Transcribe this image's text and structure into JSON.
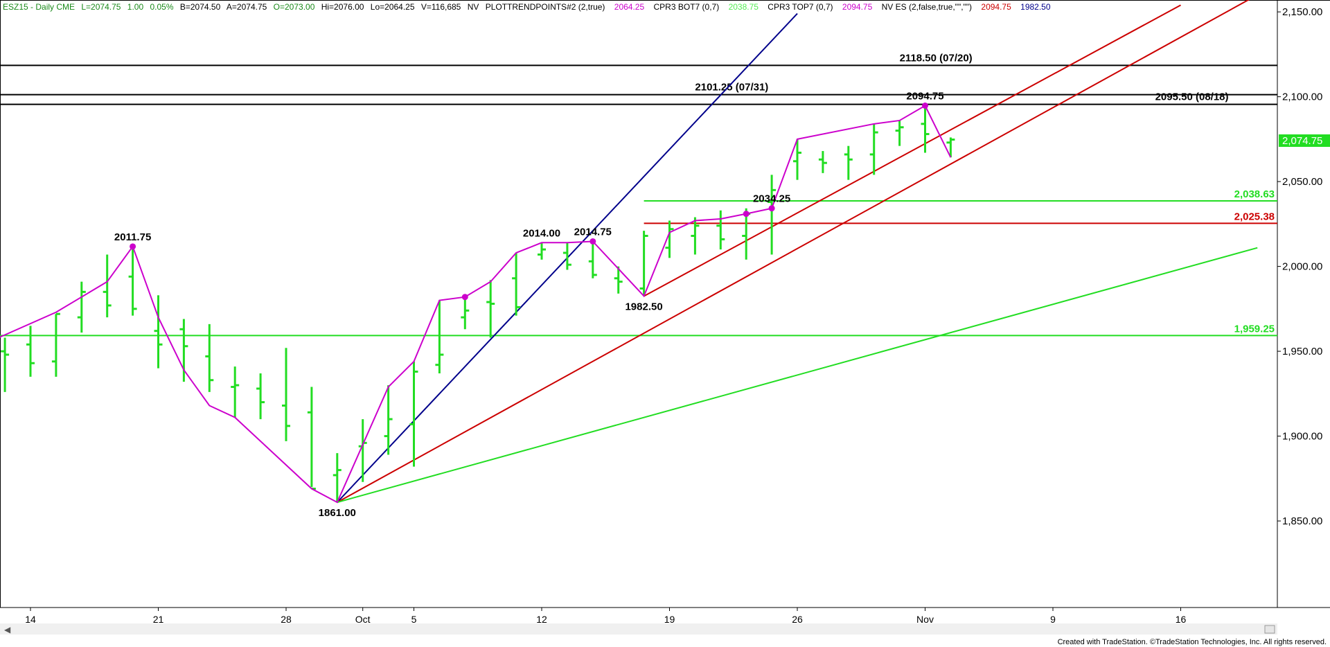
{
  "header": {
    "symbol": "ESZ15 - Daily  CME",
    "last": "L=2074.75",
    "change": "1.00",
    "pct": "0.05%",
    "bid": "B=2074.50",
    "ask": "A=2074.75",
    "open": "O=2073.00",
    "high": "Hi=2076.00",
    "low": "Lo=2064.25",
    "volume": "V=116,685",
    "nv1": "NV",
    "study1": "PLOTTRENDPOINTS#2 (2,true)",
    "study1_val": "2064.25",
    "study2": "CPR3 BOT7 (0,7)",
    "study2_val": "2038.75",
    "study3": "CPR3 TOP7 (0,7)",
    "study3_val": "2094.75",
    "study4": "NV ES (2,false,true,\"\",\"\")",
    "study4_val1": "2094.75",
    "study4_val2": "1982.50"
  },
  "footer": {
    "credit": "Created with TradeStation. ©TradeStation Technologies, Inc. All rights reserved."
  },
  "chart_data": {
    "type": "bar",
    "ohlc_bars": [
      {
        "date": "2015-09-11",
        "high": 1958,
        "low": 1926,
        "open": 1950,
        "close": 1948
      },
      {
        "date": "2015-09-14",
        "high": 1965,
        "low": 1935,
        "open": 1954,
        "close": 1943
      },
      {
        "date": "2015-09-15",
        "high": 1972,
        "low": 1935,
        "open": 1944,
        "close": 1972
      },
      {
        "date": "2015-09-16",
        "high": 1991,
        "low": 1961,
        "open": 1970,
        "close": 1985
      },
      {
        "date": "2015-09-17",
        "high": 2007,
        "low": 1970,
        "open": 1985,
        "close": 1977
      },
      {
        "date": "2015-09-18",
        "high": 2011.75,
        "low": 1971,
        "open": 1994,
        "close": 1975
      },
      {
        "date": "2015-09-21",
        "high": 1983,
        "low": 1940,
        "open": 1962,
        "close": 1954
      },
      {
        "date": "2015-09-22",
        "high": 1969,
        "low": 1932,
        "open": 1963,
        "close": 1953
      },
      {
        "date": "2015-09-23",
        "high": 1966,
        "low": 1926,
        "open": 1947,
        "close": 1933
      },
      {
        "date": "2015-09-24",
        "high": 1941,
        "low": 1911,
        "open": 1929,
        "close": 1930
      },
      {
        "date": "2015-09-25",
        "high": 1937,
        "low": 1910,
        "open": 1928,
        "close": 1920
      },
      {
        "date": "2015-09-28",
        "high": 1952,
        "low": 1897,
        "open": 1918,
        "close": 1906
      },
      {
        "date": "2015-09-29",
        "high": 1929,
        "low": 1870,
        "open": 1914,
        "close": 1869
      },
      {
        "date": "2015-09-30",
        "high": 1890,
        "low": 1861,
        "open": 1877,
        "close": 1880
      },
      {
        "date": "2015-10-01",
        "high": 1910,
        "low": 1873,
        "open": 1894,
        "close": 1896
      },
      {
        "date": "2015-10-02",
        "high": 1930,
        "low": 1889,
        "open": 1900,
        "close": 1910
      },
      {
        "date": "2015-10-05",
        "high": 1944,
        "low": 1882,
        "open": 1907,
        "close": 1938
      },
      {
        "date": "2015-10-06",
        "high": 1980,
        "low": 1937,
        "open": 1942,
        "close": 1948
      },
      {
        "date": "2015-10-07",
        "high": 1983,
        "low": 1963,
        "open": 1970,
        "close": 1974
      },
      {
        "date": "2015-10-08",
        "high": 1992,
        "low": 1958,
        "open": 1979,
        "close": 1978
      },
      {
        "date": "2015-10-09",
        "high": 2008,
        "low": 1971,
        "open": 1993,
        "close": 1976
      },
      {
        "date": "2015-10-12",
        "high": 2014,
        "low": 2004,
        "open": 2007,
        "close": 2010
      },
      {
        "date": "2015-10-13",
        "high": 2014,
        "low": 1998,
        "open": 2008,
        "close": 2001
      },
      {
        "date": "2015-10-14",
        "high": 2014.75,
        "low": 1993,
        "open": 2003,
        "close": 1995
      },
      {
        "date": "2015-10-15",
        "high": 2000,
        "low": 1984,
        "open": 1993,
        "close": 1991
      },
      {
        "date": "2015-10-16",
        "high": 2021,
        "low": 1982.5,
        "open": 1987,
        "close": 2018
      },
      {
        "date": "2015-10-19",
        "high": 2027,
        "low": 2005,
        "open": 2011,
        "close": 2022
      },
      {
        "date": "2015-10-20",
        "high": 2029,
        "low": 2007,
        "open": 2018,
        "close": 2024
      },
      {
        "date": "2015-10-21",
        "high": 2033,
        "low": 2010,
        "open": 2024,
        "close": 2016
      },
      {
        "date": "2015-10-22",
        "high": 2034.25,
        "low": 2004,
        "open": 2018,
        "close": 2031
      },
      {
        "date": "2015-10-23",
        "high": 2054,
        "low": 2007,
        "open": 2038,
        "close": 2045
      },
      {
        "date": "2015-10-26",
        "high": 2075,
        "low": 2051,
        "open": 2062,
        "close": 2067
      },
      {
        "date": "2015-10-27",
        "high": 2068,
        "low": 2055,
        "open": 2063,
        "close": 2061
      },
      {
        "date": "2015-10-28",
        "high": 2071,
        "low": 2051,
        "open": 2066,
        "close": 2063
      },
      {
        "date": "2015-10-29",
        "high": 2084,
        "low": 2054,
        "open": 2066,
        "close": 2079
      },
      {
        "date": "2015-10-30",
        "high": 2086,
        "low": 2071,
        "open": 2080,
        "close": 2082
      },
      {
        "date": "2015-11-02",
        "high": 2094.75,
        "low": 2067,
        "open": 2084,
        "close": 2078
      },
      {
        "date": "2015-11-03",
        "high": 2076,
        "low": 2064.25,
        "open": 2073,
        "close": 2074.75
      }
    ],
    "y_tick_labels": [
      "2,150.00",
      "2,100.00",
      "2,050.00",
      "2,000.00",
      "1,950.00",
      "1,900.00",
      "1,850.00"
    ],
    "y_ticks": [
      2150,
      2100,
      2050,
      2000,
      1950,
      1900,
      1850
    ],
    "ylim": [
      1799,
      2157
    ],
    "x_tick_labels": [
      {
        "label": "14",
        "date": "2015-09-14"
      },
      {
        "label": "21",
        "date": "2015-09-21"
      },
      {
        "label": "28",
        "date": "2015-09-28"
      },
      {
        "label": "Oct",
        "date": "2015-10-01"
      },
      {
        "label": "5",
        "date": "2015-10-05"
      },
      {
        "label": "12",
        "date": "2015-10-12"
      },
      {
        "label": "19",
        "date": "2015-10-19"
      },
      {
        "label": "26",
        "date": "2015-10-26"
      },
      {
        "label": "Nov",
        "date": "2015-11-02"
      },
      {
        "label": "9",
        "date": "2015-11-09"
      },
      {
        "label": "16",
        "date": "2015-11-16"
      }
    ],
    "last_price_label": "2,074.75",
    "horizontal_levels": [
      {
        "value": 2118.5,
        "color": "#000000",
        "label": "2118.50 (07/20)",
        "label_date": "2015-10-30"
      },
      {
        "value": 2101.25,
        "color": "#000000",
        "label": "2101.25 (07/31)",
        "label_date": "2015-10-20"
      },
      {
        "value": 2095.5,
        "color": "#000000",
        "label": "2095.50 (08/18)",
        "label_date": "2015-11-13"
      }
    ],
    "level_lines": [
      {
        "value": 2038.63,
        "color": "#22dd22",
        "start_date": "2015-10-16",
        "label": "2,038.63"
      },
      {
        "value": 2025.38,
        "color": "#cc0000",
        "start_date": "2015-10-16",
        "label": "2,025.38"
      },
      {
        "value": 1959.25,
        "color": "#22dd22",
        "start_date": "2015-09-10",
        "label": "1,959.25"
      }
    ],
    "trend_lines": [
      {
        "color": "#00008b",
        "from": {
          "date": "2015-09-30",
          "value": 1861
        },
        "to": {
          "date": "2015-10-26",
          "value": 2149
        }
      },
      {
        "color": "#cc0000",
        "from": {
          "date": "2015-09-30",
          "value": 1861
        },
        "to": {
          "date": "2015-11-19",
          "value": 2160
        }
      },
      {
        "color": "#cc0000",
        "from": {
          "date": "2015-10-16",
          "value": 1982.5
        },
        "to": {
          "date": "2015-11-16",
          "value": 2154
        }
      },
      {
        "color": "#22dd22",
        "from": {
          "date": "2015-09-30",
          "value": 1861
        },
        "to": {
          "date": "2015-11-19",
          "value": 2011
        }
      }
    ],
    "swing_line": [
      {
        "date": "2015-09-10",
        "value": 1953
      },
      {
        "date": "2015-09-15",
        "value": 1973
      },
      {
        "date": "2015-09-17",
        "value": 1991
      },
      {
        "date": "2015-09-18",
        "value": 2011.75
      },
      {
        "date": "2015-09-21",
        "value": 1970
      },
      {
        "date": "2015-09-22",
        "value": 1939
      },
      {
        "date": "2015-09-23",
        "value": 1918
      },
      {
        "date": "2015-09-24",
        "value": 1911
      },
      {
        "date": "2015-09-29",
        "value": 1869
      },
      {
        "date": "2015-09-30",
        "value": 1861
      },
      {
        "date": "2015-10-02",
        "value": 1929
      },
      {
        "date": "2015-10-05",
        "value": 1944
      },
      {
        "date": "2015-10-06",
        "value": 1980
      },
      {
        "date": "2015-10-07",
        "value": 1982
      },
      {
        "date": "2015-10-08",
        "value": 1991
      },
      {
        "date": "2015-10-09",
        "value": 2008
      },
      {
        "date": "2015-10-12",
        "value": 2014
      },
      {
        "date": "2015-10-13",
        "value": 2014
      },
      {
        "date": "2015-10-14",
        "value": 2014.75
      },
      {
        "date": "2015-10-16",
        "value": 1982.5
      },
      {
        "date": "2015-10-19",
        "value": 2020
      },
      {
        "date": "2015-10-20",
        "value": 2027
      },
      {
        "date": "2015-10-21",
        "value": 2028
      },
      {
        "date": "2015-10-22",
        "value": 2031
      },
      {
        "date": "2015-10-23",
        "value": 2034.25
      },
      {
        "date": "2015-10-26",
        "value": 2075
      },
      {
        "date": "2015-10-29",
        "value": 2084
      },
      {
        "date": "2015-10-30",
        "value": 2086
      },
      {
        "date": "2015-11-02",
        "value": 2094.75
      },
      {
        "date": "2015-11-03",
        "value": 2064.25
      }
    ],
    "pivot_dots": [
      {
        "date": "2015-09-18",
        "value": 2011.75
      },
      {
        "date": "2015-10-07",
        "value": 1982
      },
      {
        "date": "2015-10-14",
        "value": 2014.75
      },
      {
        "date": "2015-10-22",
        "value": 2031
      },
      {
        "date": "2015-10-23",
        "value": 2034.25
      },
      {
        "date": "2015-11-02",
        "value": 2094.75
      }
    ],
    "annotations": [
      {
        "text": "2011.75",
        "date": "2015-09-18",
        "value": 2011.75,
        "pos": "above"
      },
      {
        "text": "1861.00",
        "date": "2015-09-30",
        "value": 1861,
        "pos": "below"
      },
      {
        "text": "2014.00",
        "date": "2015-10-12",
        "value": 2014,
        "pos": "above"
      },
      {
        "text": "2014.75",
        "date": "2015-10-14",
        "value": 2014.75,
        "pos": "above"
      },
      {
        "text": "1982.50",
        "date": "2015-10-16",
        "value": 1982.5,
        "pos": "below"
      },
      {
        "text": "2034.25",
        "date": "2015-10-23",
        "value": 2034.25,
        "pos": "above"
      },
      {
        "text": "2094.75",
        "date": "2015-11-02",
        "value": 2094.75,
        "pos": "above"
      }
    ],
    "colors": {
      "bars": "#22dd22",
      "swing": "#cc00cc",
      "price_label_bg": "#22dd22"
    }
  }
}
